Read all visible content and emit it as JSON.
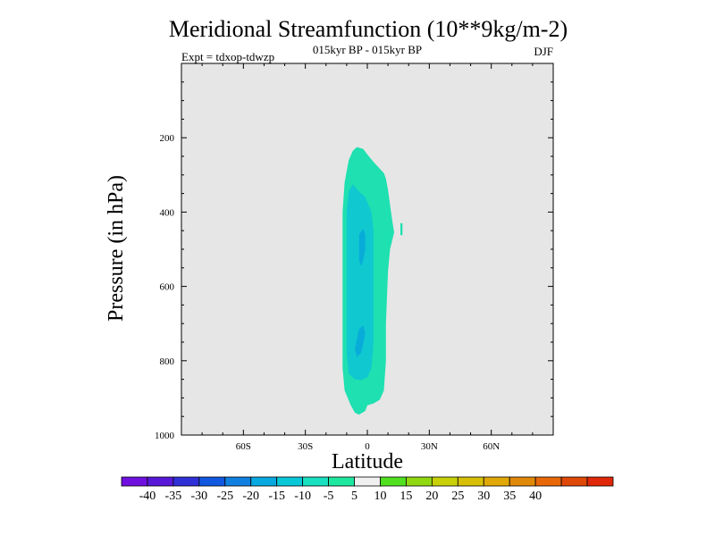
{
  "chart_data": {
    "type": "contour",
    "title": "Meridional Streamfunction (10**9kg/m-2)",
    "subtitle": "015kyr BP - 015kyr BP",
    "left_label": "Expt = tdxop-tdwzp",
    "right_label": "DJF",
    "xlabel": "Latitude",
    "ylabel": "Pressure (in hPa)",
    "xlim": [
      -90,
      90
    ],
    "ylim": [
      1000,
      0
    ],
    "x_ticks": [
      {
        "value": -60,
        "label": "60S"
      },
      {
        "value": -30,
        "label": "30S"
      },
      {
        "value": 0,
        "label": "0"
      },
      {
        "value": 30,
        "label": "30N"
      },
      {
        "value": 60,
        "label": "60N"
      }
    ],
    "y_ticks": [
      {
        "value": 200,
        "label": "200"
      },
      {
        "value": 400,
        "label": "400"
      },
      {
        "value": 600,
        "label": "600"
      },
      {
        "value": 800,
        "label": "800"
      },
      {
        "value": 1000,
        "label": "1000"
      }
    ],
    "contour_regions": [
      {
        "level_range": [
          -10,
          -5
        ],
        "color": "#1ee0b0",
        "polygon": [
          [
            -5,
            225
          ],
          [
            -2,
            230
          ],
          [
            0,
            245
          ],
          [
            3,
            265
          ],
          [
            8,
            295
          ],
          [
            9,
            310
          ],
          [
            10,
            340
          ],
          [
            11,
            380
          ],
          [
            12,
            420
          ],
          [
            13,
            455
          ],
          [
            11,
            500
          ],
          [
            10,
            560
          ],
          [
            9,
            700
          ],
          [
            9,
            800
          ],
          [
            8,
            880
          ],
          [
            6,
            905
          ],
          [
            3,
            915
          ],
          [
            0,
            920
          ],
          [
            -1,
            935
          ],
          [
            -4,
            945
          ],
          [
            -6,
            940
          ],
          [
            -8,
            920
          ],
          [
            -11,
            880
          ],
          [
            -12,
            820
          ],
          [
            -12,
            700
          ],
          [
            -12,
            600
          ],
          [
            -12,
            500
          ],
          [
            -12,
            400
          ],
          [
            -11,
            320
          ],
          [
            -9,
            260
          ],
          [
            -7,
            235
          ]
        ]
      },
      {
        "level_range": [
          -15,
          -10
        ],
        "color": "#10c8d0",
        "polygon": [
          [
            -7,
            325
          ],
          [
            -4,
            345
          ],
          [
            -1,
            360
          ],
          [
            2,
            400
          ],
          [
            3,
            450
          ],
          [
            3,
            550
          ],
          [
            3,
            650
          ],
          [
            3,
            750
          ],
          [
            2,
            820
          ],
          [
            0,
            845
          ],
          [
            -3,
            852
          ],
          [
            -6,
            850
          ],
          [
            -9,
            835
          ],
          [
            -10,
            780
          ],
          [
            -10,
            650
          ],
          [
            -10,
            500
          ],
          [
            -10,
            400
          ],
          [
            -9,
            345
          ]
        ]
      },
      {
        "level_range": [
          -20,
          -15
        ],
        "color": "#08acd8",
        "polygon": [
          [
            -2,
            445
          ],
          [
            -1,
            460
          ],
          [
            -1,
            500
          ],
          [
            -2,
            530
          ],
          [
            -3,
            545
          ],
          [
            -4,
            530
          ],
          [
            -4,
            490
          ],
          [
            -4,
            460
          ]
        ]
      },
      {
        "level_range": [
          -20,
          -15
        ],
        "color": "#08acd8",
        "polygon": [
          [
            -2,
            705
          ],
          [
            -1,
            725
          ],
          [
            -2,
            755
          ],
          [
            -3,
            778
          ],
          [
            -5,
            790
          ],
          [
            -6,
            770
          ],
          [
            -5,
            740
          ],
          [
            -4,
            715
          ]
        ]
      },
      {
        "level_range": [
          -10,
          -5
        ],
        "color": "#1ee0b0",
        "polygon": [
          [
            16,
            430
          ],
          [
            17,
            430
          ],
          [
            17,
            462
          ],
          [
            16,
            462
          ]
        ]
      }
    ],
    "colorbar": {
      "colors": [
        "#7010e0",
        "#5818d8",
        "#3030d8",
        "#1058e0",
        "#1080e0",
        "#08a8e0",
        "#08c8d8",
        "#18e0c0",
        "#1ee8a0",
        "#f0f0f0",
        "#50e020",
        "#90d810",
        "#c8d008",
        "#d8c008",
        "#e0a808",
        "#e08808",
        "#e86808",
        "#e04808",
        "#e02808"
      ],
      "labels": [
        "-40",
        "-35",
        "-30",
        "-25",
        "-20",
        "-15",
        "-10",
        "-5",
        "5",
        "10",
        "15",
        "20",
        "25",
        "30",
        "35",
        "40"
      ]
    }
  }
}
